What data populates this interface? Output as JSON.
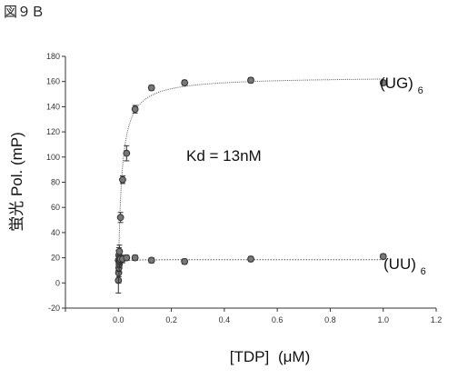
{
  "figure_label": "図９Ｂ",
  "chart_data": {
    "type": "scatter",
    "xlabel_main": "[TDP]",
    "xlabel_unit": "(μM)",
    "ylabel": "蛍光 Pol. (mP)",
    "xlim": [
      -0.2,
      1.2
    ],
    "ylim": [
      -20,
      180
    ],
    "xticks": [
      -0.2,
      0.0,
      0.2,
      0.4,
      0.6,
      0.8,
      1.0,
      1.2
    ],
    "xtick_labels": [
      "",
      "0.0",
      "0.2",
      "0.4",
      "0.6",
      "0.8",
      "1.0",
      "1.2"
    ],
    "yticks": [
      -20,
      0,
      20,
      40,
      60,
      80,
      100,
      120,
      140,
      160,
      180
    ],
    "ytick_labels": [
      "-20",
      "0",
      "20",
      "40",
      "60",
      "80",
      "100",
      "120",
      "140",
      "160",
      "180"
    ],
    "grid": false,
    "annotation": "Kd =  13nM",
    "series": [
      {
        "name": "(UG)6",
        "label_main": "(UG)",
        "label_sub": "6",
        "color": "#333333",
        "x": [
          0.0,
          0.002,
          0.004,
          0.008,
          0.016,
          0.031,
          0.063,
          0.125,
          0.25,
          0.5,
          1.0
        ],
        "y": [
          18,
          22,
          25,
          52,
          82,
          103,
          138,
          155,
          159,
          161,
          159
        ],
        "err": [
          8,
          6,
          5,
          4,
          3,
          6,
          3,
          2,
          2,
          2,
          2
        ]
      },
      {
        "name": "(UU)6",
        "label_main": "(UU)",
        "label_sub": "6",
        "color": "#333333",
        "x": [
          0.0,
          0.001,
          0.002,
          0.003,
          0.004,
          0.006,
          0.008,
          0.016,
          0.031,
          0.063,
          0.125,
          0.25,
          0.5,
          1.0
        ],
        "y": [
          2,
          8,
          12,
          15,
          17,
          18,
          19,
          19,
          20,
          20,
          18,
          17,
          19,
          21
        ],
        "err": [
          10,
          8,
          7,
          6,
          5,
          4,
          3,
          3,
          2,
          2,
          2,
          2,
          2,
          2
        ]
      }
    ],
    "fits": [
      {
        "series": "(UG)6",
        "kd": 0.013,
        "bottom": 5,
        "top": 164
      },
      {
        "series": "(UU)6",
        "kd": 0.001,
        "bottom": 2,
        "top": 18.5
      }
    ]
  }
}
